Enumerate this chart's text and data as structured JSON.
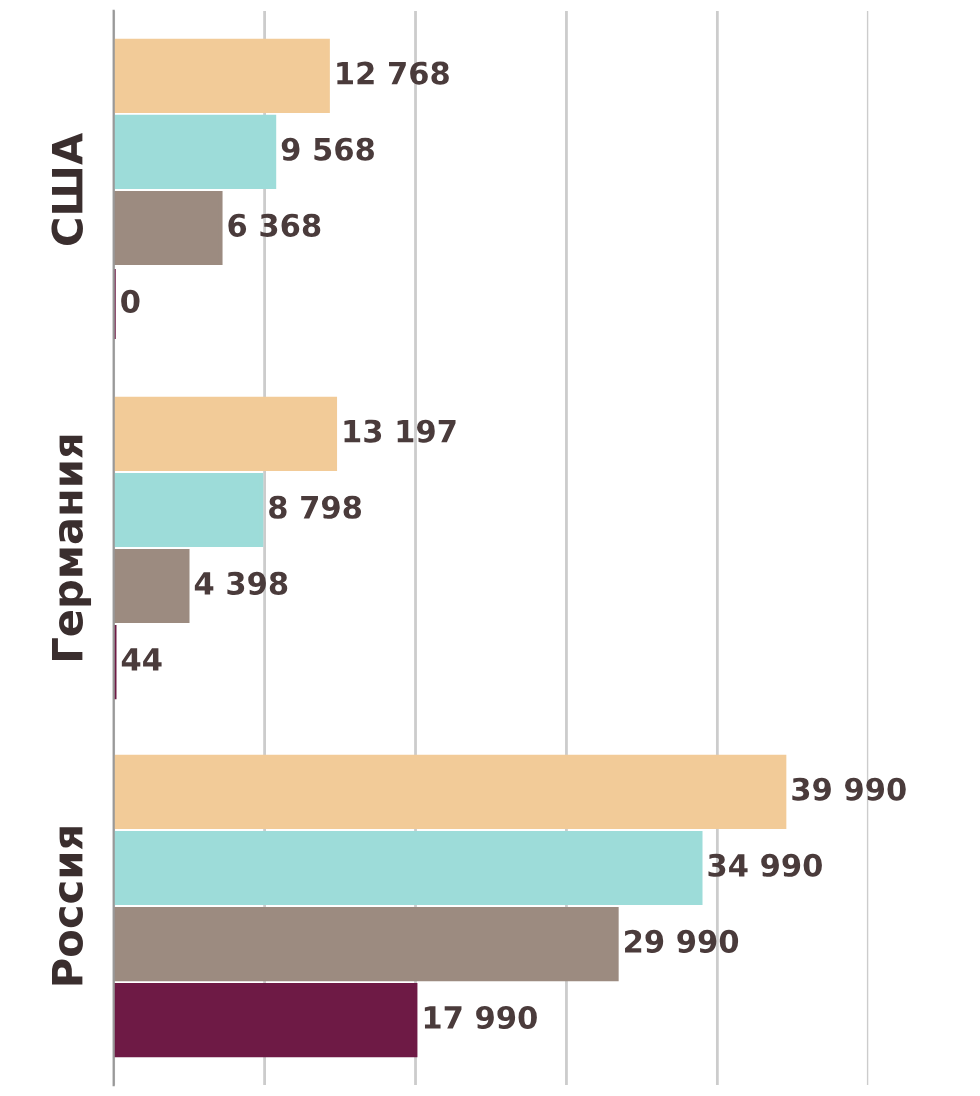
{
  "chart_data": {
    "type": "bar",
    "orientation": "horizontal",
    "categories": [
      "США",
      "Германия",
      "Россия"
    ],
    "series": [
      {
        "color": "#f2cb98",
        "values": [
          12768,
          13197,
          39990
        ],
        "value_labels": [
          "12 768",
          "13 197",
          "39 990"
        ]
      },
      {
        "color": "#9ddcd9",
        "values": [
          9568,
          8798,
          34990
        ],
        "value_labels": [
          "9 568",
          "8 798",
          "34 990"
        ]
      },
      {
        "color": "#9c8b80",
        "values": [
          6368,
          4398,
          29990
        ],
        "value_labels": [
          "6 368",
          "4 398",
          "29 990"
        ]
      },
      {
        "color": "#6e1a45",
        "values": [
          0,
          44,
          17990
        ],
        "value_labels": [
          "0",
          "44",
          "17 990"
        ]
      }
    ],
    "xlim": [
      0,
      45000
    ],
    "xticks": [
      {
        "value": 0,
        "label": null
      },
      {
        "value": 9000,
        "label": null
      },
      {
        "value": 18000,
        "label": null
      },
      {
        "value": 27000,
        "label": null
      },
      {
        "value": 36000,
        "label": null
      },
      {
        "value": 45000,
        "label": null
      }
    ],
    "grid": "x",
    "legend": false
  }
}
